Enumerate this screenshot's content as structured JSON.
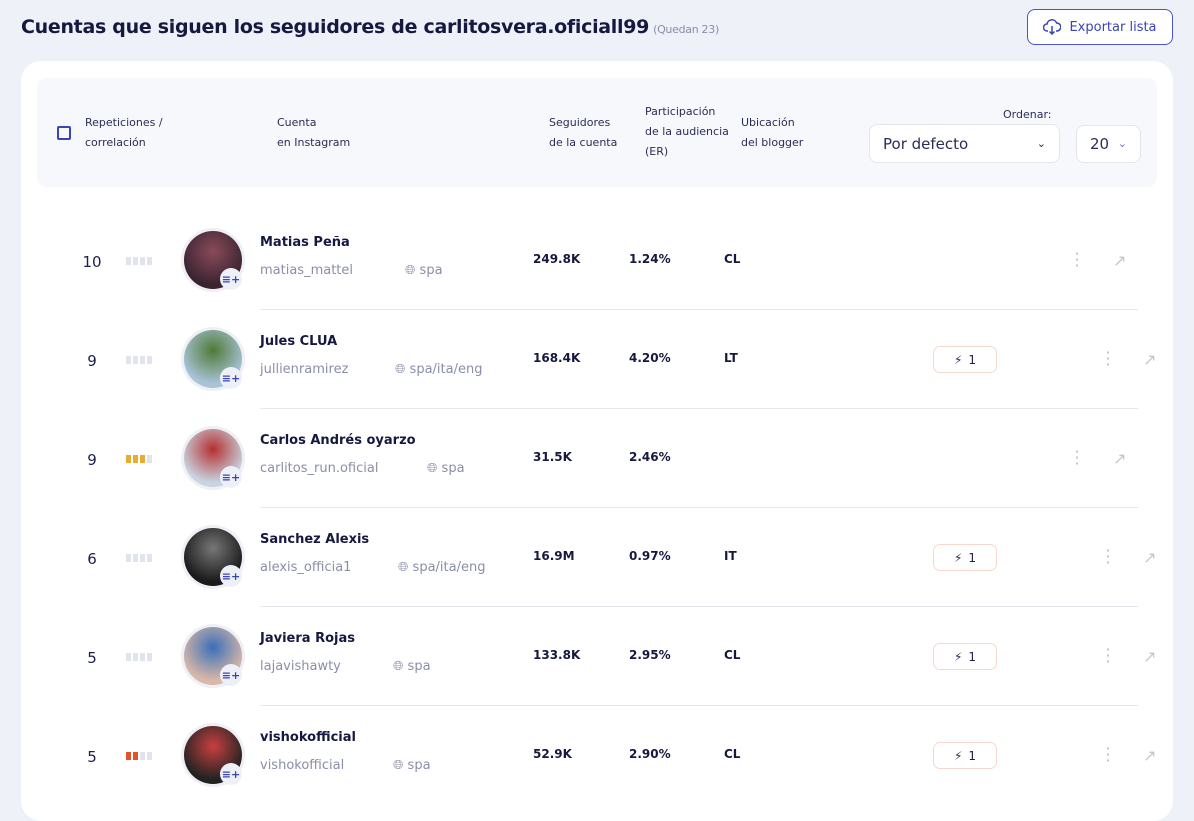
{
  "header": {
    "title": "Cuentas que siguen los seguidores de carlitosvera.oficiall99",
    "remaining": "(Quedan 23)",
    "export_label": "Exportar lista",
    "export_icon": "cloud-download-icon"
  },
  "table": {
    "columns": {
      "repetitions": [
        "Repeticiones /",
        "correlación"
      ],
      "account": [
        "Cuenta",
        "en Instagram"
      ],
      "followers": [
        "Seguidores",
        "de la cuenta"
      ],
      "er": [
        "Participación",
        "de la audiencia",
        "(ER)"
      ],
      "location": [
        "Ubicación",
        "del blogger"
      ]
    },
    "sort_label": "Ordenar:",
    "sort_value": "Por defecto",
    "page_size": "20"
  },
  "colors": {
    "accent": "#3a43b8",
    "bar_empty": "#e1e4ec",
    "bar_yellow": "#e8ac30",
    "bar_red": "#e5522a"
  },
  "rows": [
    {
      "repetitions": "10",
      "correlation": 0,
      "corr_color": "",
      "name": "Matias Peña",
      "handle": "matias_mattel",
      "lang": "spa",
      "followers": "249.8K",
      "er": "1.24%",
      "location": "CL",
      "badge": null,
      "avatar": [
        "#3a2430",
        "#8a4a5a"
      ]
    },
    {
      "repetitions": "9",
      "correlation": 0,
      "corr_color": "",
      "name": "Jules CLUA",
      "handle": "jullienramirez",
      "lang": "spa/ita/eng",
      "followers": "168.4K",
      "er": "4.20%",
      "location": "LT",
      "badge": "1",
      "avatar": [
        "#a9c3d8",
        "#4f7a36"
      ]
    },
    {
      "repetitions": "9",
      "correlation": 3,
      "corr_color": "#e8ac30",
      "name": "Carlos Andrés oyarzo",
      "handle": "carlitos_run.oficial",
      "lang": "spa",
      "followers": "31.5K",
      "er": "2.46%",
      "location": "",
      "badge": null,
      "avatar": [
        "#c8d4e0",
        "#b53030"
      ]
    },
    {
      "repetitions": "6",
      "correlation": 0,
      "corr_color": "",
      "name": "Sanchez Alexis",
      "handle": "alexis_officia1",
      "lang": "spa/ita/eng",
      "followers": "16.9M",
      "er": "0.97%",
      "location": "IT",
      "badge": "1",
      "avatar": [
        "#1a1a1a",
        "#777777"
      ]
    },
    {
      "repetitions": "5",
      "correlation": 0,
      "corr_color": "",
      "name": "Javiera Rojas",
      "handle": "lajavishawty",
      "lang": "spa",
      "followers": "133.8K",
      "er": "2.95%",
      "location": "CL",
      "badge": "1",
      "avatar": [
        "#d9b8a8",
        "#3b6fb8"
      ]
    },
    {
      "repetitions": "5",
      "correlation": 2,
      "corr_color": "#e5522a",
      "name": "vishokofficial",
      "handle": "vishokofficial",
      "lang": "spa",
      "followers": "52.9K",
      "er": "2.90%",
      "location": "CL",
      "badge": "1",
      "avatar": [
        "#222222",
        "#c84040"
      ]
    }
  ]
}
